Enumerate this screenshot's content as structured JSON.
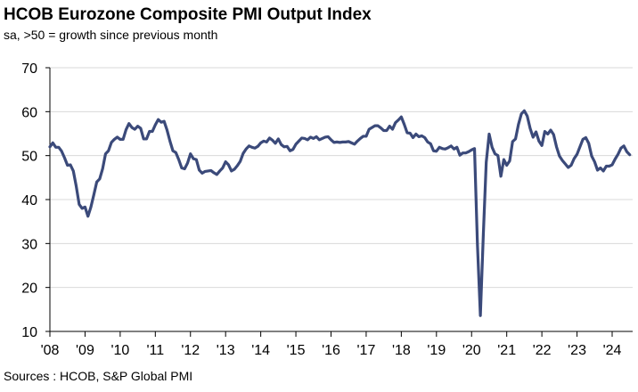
{
  "title": "HCOB Eurozone Composite PMI Output Index",
  "subtitle": "sa, >50 = growth  since previous month",
  "source": "Sources : HCOB, S&P Global  PMI",
  "chart_data": {
    "type": "line",
    "title": "HCOB Eurozone Composite PMI Output Index",
    "subtitle": "sa, >50 = growth  since previous month",
    "xlabel": "",
    "ylabel": "",
    "ylim": [
      10,
      70
    ],
    "xlim": [
      "2008-01",
      "2024-06"
    ],
    "y_ticks": [
      10,
      20,
      30,
      40,
      50,
      60,
      70
    ],
    "x_ticks": [
      "'08",
      "'09",
      "'10",
      "'11",
      "'12",
      "'13",
      "'14",
      "'15",
      "'16",
      "'17",
      "'18",
      "'19",
      "'20",
      "'21",
      "'22",
      "'23",
      "'24"
    ],
    "grid": "horizontal",
    "legend": "none",
    "series_color": "#3b4a7a",
    "series": [
      {
        "values": [
          [
            "2008-01",
            52.0
          ],
          [
            "2008-02",
            52.9
          ],
          [
            "2008-03",
            51.9
          ],
          [
            "2008-04",
            51.9
          ],
          [
            "2008-05",
            51.0
          ],
          [
            "2008-06",
            49.5
          ],
          [
            "2008-07",
            47.8
          ],
          [
            "2008-08",
            47.9
          ],
          [
            "2008-09",
            46.5
          ],
          [
            "2008-10",
            43.0
          ],
          [
            "2008-11",
            38.9
          ],
          [
            "2008-12",
            38.0
          ],
          [
            "2009-01",
            38.3
          ],
          [
            "2009-02",
            36.2
          ],
          [
            "2009-03",
            38.3
          ],
          [
            "2009-04",
            41.1
          ],
          [
            "2009-05",
            44.0
          ],
          [
            "2009-06",
            44.7
          ],
          [
            "2009-07",
            47.0
          ],
          [
            "2009-08",
            50.4
          ],
          [
            "2009-09",
            51.1
          ],
          [
            "2009-10",
            53.0
          ],
          [
            "2009-11",
            53.7
          ],
          [
            "2009-12",
            54.2
          ],
          [
            "2010-01",
            53.7
          ],
          [
            "2010-02",
            53.7
          ],
          [
            "2010-03",
            55.9
          ],
          [
            "2010-04",
            57.3
          ],
          [
            "2010-05",
            56.4
          ],
          [
            "2010-06",
            56.0
          ],
          [
            "2010-07",
            56.7
          ],
          [
            "2010-08",
            56.2
          ],
          [
            "2010-09",
            53.8
          ],
          [
            "2010-10",
            53.8
          ],
          [
            "2010-11",
            55.5
          ],
          [
            "2010-12",
            55.5
          ],
          [
            "2011-01",
            57.0
          ],
          [
            "2011-02",
            58.2
          ],
          [
            "2011-03",
            57.6
          ],
          [
            "2011-04",
            57.8
          ],
          [
            "2011-05",
            55.8
          ],
          [
            "2011-06",
            53.3
          ],
          [
            "2011-07",
            51.1
          ],
          [
            "2011-08",
            50.7
          ],
          [
            "2011-09",
            49.1
          ],
          [
            "2011-10",
            47.2
          ],
          [
            "2011-11",
            47.0
          ],
          [
            "2011-12",
            48.3
          ],
          [
            "2012-01",
            50.4
          ],
          [
            "2012-02",
            49.3
          ],
          [
            "2012-03",
            49.1
          ],
          [
            "2012-04",
            46.7
          ],
          [
            "2012-05",
            46.0
          ],
          [
            "2012-06",
            46.4
          ],
          [
            "2012-07",
            46.5
          ],
          [
            "2012-08",
            46.6
          ],
          [
            "2012-09",
            46.1
          ],
          [
            "2012-10",
            45.7
          ],
          [
            "2012-11",
            46.5
          ],
          [
            "2012-12",
            47.2
          ],
          [
            "2013-01",
            48.6
          ],
          [
            "2013-02",
            47.9
          ],
          [
            "2013-03",
            46.5
          ],
          [
            "2013-04",
            46.9
          ],
          [
            "2013-05",
            47.7
          ],
          [
            "2013-06",
            48.7
          ],
          [
            "2013-07",
            50.5
          ],
          [
            "2013-08",
            51.5
          ],
          [
            "2013-09",
            52.2
          ],
          [
            "2013-10",
            51.9
          ],
          [
            "2013-11",
            51.7
          ],
          [
            "2013-12",
            52.1
          ],
          [
            "2014-01",
            52.9
          ],
          [
            "2014-02",
            53.3
          ],
          [
            "2014-03",
            53.1
          ],
          [
            "2014-04",
            54.0
          ],
          [
            "2014-05",
            53.5
          ],
          [
            "2014-06",
            52.8
          ],
          [
            "2014-07",
            53.8
          ],
          [
            "2014-08",
            52.5
          ],
          [
            "2014-09",
            52.0
          ],
          [
            "2014-10",
            52.1
          ],
          [
            "2014-11",
            51.1
          ],
          [
            "2014-12",
            51.4
          ],
          [
            "2015-01",
            52.6
          ],
          [
            "2015-02",
            53.3
          ],
          [
            "2015-03",
            54.0
          ],
          [
            "2015-04",
            53.9
          ],
          [
            "2015-05",
            53.6
          ],
          [
            "2015-06",
            54.2
          ],
          [
            "2015-07",
            53.9
          ],
          [
            "2015-08",
            54.3
          ],
          [
            "2015-09",
            53.6
          ],
          [
            "2015-10",
            53.9
          ],
          [
            "2015-11",
            54.2
          ],
          [
            "2015-12",
            54.3
          ],
          [
            "2016-01",
            53.6
          ],
          [
            "2016-02",
            53.0
          ],
          [
            "2016-03",
            53.1
          ],
          [
            "2016-04",
            53.0
          ],
          [
            "2016-05",
            53.1
          ],
          [
            "2016-06",
            53.1
          ],
          [
            "2016-07",
            53.2
          ],
          [
            "2016-08",
            52.9
          ],
          [
            "2016-09",
            52.6
          ],
          [
            "2016-10",
            53.3
          ],
          [
            "2016-11",
            53.9
          ],
          [
            "2016-12",
            54.4
          ],
          [
            "2017-01",
            54.4
          ],
          [
            "2017-02",
            56.0
          ],
          [
            "2017-03",
            56.4
          ],
          [
            "2017-04",
            56.8
          ],
          [
            "2017-05",
            56.8
          ],
          [
            "2017-06",
            56.3
          ],
          [
            "2017-07",
            55.7
          ],
          [
            "2017-08",
            55.7
          ],
          [
            "2017-09",
            56.7
          ],
          [
            "2017-10",
            56.0
          ],
          [
            "2017-11",
            57.5
          ],
          [
            "2017-12",
            58.1
          ],
          [
            "2018-01",
            58.8
          ],
          [
            "2018-02",
            57.1
          ],
          [
            "2018-03",
            55.2
          ],
          [
            "2018-04",
            55.1
          ],
          [
            "2018-05",
            54.1
          ],
          [
            "2018-06",
            54.9
          ],
          [
            "2018-07",
            54.3
          ],
          [
            "2018-08",
            54.5
          ],
          [
            "2018-09",
            54.1
          ],
          [
            "2018-10",
            53.1
          ],
          [
            "2018-11",
            52.7
          ],
          [
            "2018-12",
            51.1
          ],
          [
            "2019-01",
            51.0
          ],
          [
            "2019-02",
            51.9
          ],
          [
            "2019-03",
            51.6
          ],
          [
            "2019-04",
            51.5
          ],
          [
            "2019-05",
            51.8
          ],
          [
            "2019-06",
            52.2
          ],
          [
            "2019-07",
            51.5
          ],
          [
            "2019-08",
            51.9
          ],
          [
            "2019-09",
            50.1
          ],
          [
            "2019-10",
            50.6
          ],
          [
            "2019-11",
            50.6
          ],
          [
            "2019-12",
            50.9
          ],
          [
            "2020-01",
            51.3
          ],
          [
            "2020-02",
            51.6
          ],
          [
            "2020-03",
            29.7
          ],
          [
            "2020-04",
            13.6
          ],
          [
            "2020-05",
            31.9
          ],
          [
            "2020-06",
            48.5
          ],
          [
            "2020-07",
            54.9
          ],
          [
            "2020-08",
            51.9
          ],
          [
            "2020-09",
            50.4
          ],
          [
            "2020-10",
            50.0
          ],
          [
            "2020-11",
            45.3
          ],
          [
            "2020-12",
            49.1
          ],
          [
            "2021-01",
            47.8
          ],
          [
            "2021-02",
            48.8
          ],
          [
            "2021-03",
            53.2
          ],
          [
            "2021-04",
            53.8
          ],
          [
            "2021-05",
            57.1
          ],
          [
            "2021-06",
            59.5
          ],
          [
            "2021-07",
            60.2
          ],
          [
            "2021-08",
            59.0
          ],
          [
            "2021-09",
            56.2
          ],
          [
            "2021-10",
            54.2
          ],
          [
            "2021-11",
            55.4
          ],
          [
            "2021-12",
            53.3
          ],
          [
            "2022-01",
            52.3
          ],
          [
            "2022-02",
            55.5
          ],
          [
            "2022-03",
            54.9
          ],
          [
            "2022-04",
            55.8
          ],
          [
            "2022-05",
            54.8
          ],
          [
            "2022-06",
            52.0
          ],
          [
            "2022-07",
            49.9
          ],
          [
            "2022-08",
            48.9
          ],
          [
            "2022-09",
            48.1
          ],
          [
            "2022-10",
            47.3
          ],
          [
            "2022-11",
            47.8
          ],
          [
            "2022-12",
            49.3
          ],
          [
            "2023-01",
            50.3
          ],
          [
            "2023-02",
            52.0
          ],
          [
            "2023-03",
            53.7
          ],
          [
            "2023-04",
            54.1
          ],
          [
            "2023-05",
            52.8
          ],
          [
            "2023-06",
            49.9
          ],
          [
            "2023-07",
            48.6
          ],
          [
            "2023-08",
            46.7
          ],
          [
            "2023-09",
            47.2
          ],
          [
            "2023-10",
            46.5
          ],
          [
            "2023-11",
            47.6
          ],
          [
            "2023-12",
            47.6
          ],
          [
            "2024-01",
            47.9
          ],
          [
            "2024-02",
            49.2
          ],
          [
            "2024-03",
            50.3
          ],
          [
            "2024-04",
            51.7
          ],
          [
            "2024-05",
            52.2
          ],
          [
            "2024-06",
            50.9
          ],
          [
            "2024-07",
            50.2
          ]
        ]
      }
    ]
  }
}
